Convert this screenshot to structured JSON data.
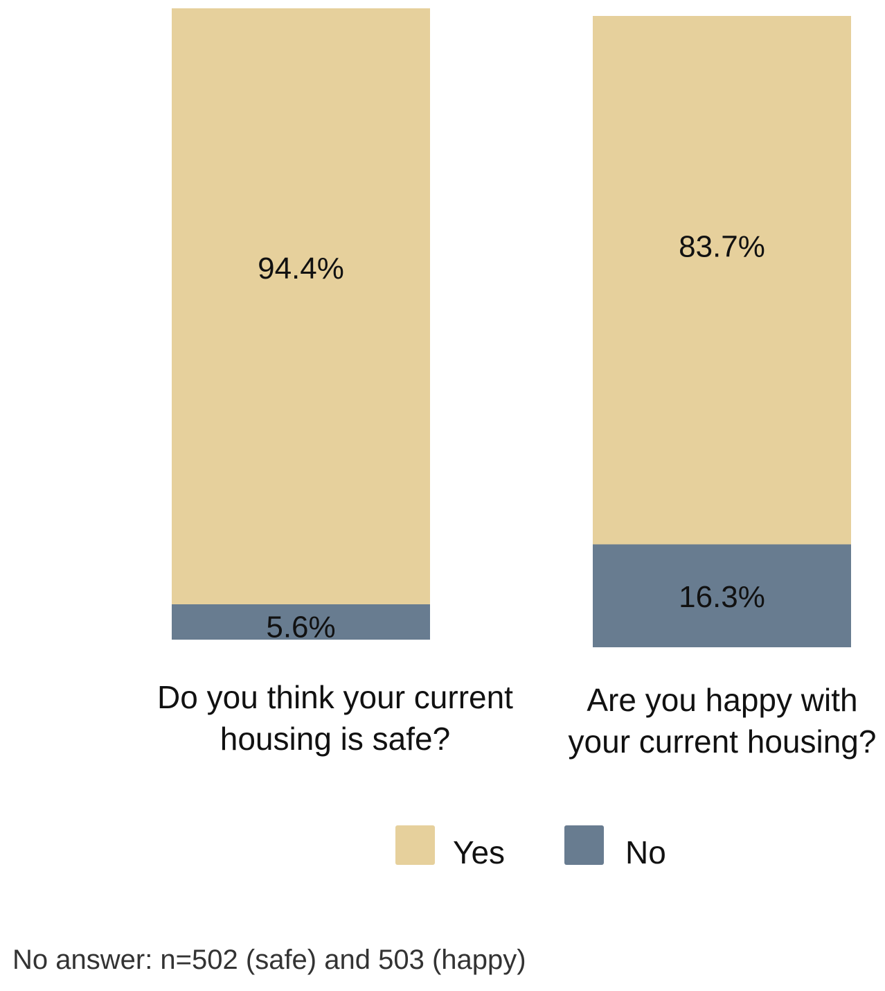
{
  "chart_data": {
    "type": "bar",
    "stacked": true,
    "categories": [
      [
        "Do you think your current",
        "housing is safe?"
      ],
      [
        "Are you happy with",
        "your current housing?"
      ]
    ],
    "series": [
      {
        "name": "Yes",
        "values": [
          94.4,
          83.7
        ],
        "labels": [
          "94.4%",
          "83.7%"
        ],
        "color": "#E6D09C"
      },
      {
        "name": "No",
        "values": [
          5.6,
          16.3
        ],
        "labels": [
          "5.6%",
          "16.3%"
        ],
        "color": "#687C90"
      }
    ],
    "ylim": [
      0,
      100
    ],
    "grid": false,
    "legend": {
      "placement": "bottom-center",
      "entries": [
        "Yes",
        "No"
      ]
    },
    "footnote": "No answer: n=502 (safe) and 503 (happy)"
  }
}
